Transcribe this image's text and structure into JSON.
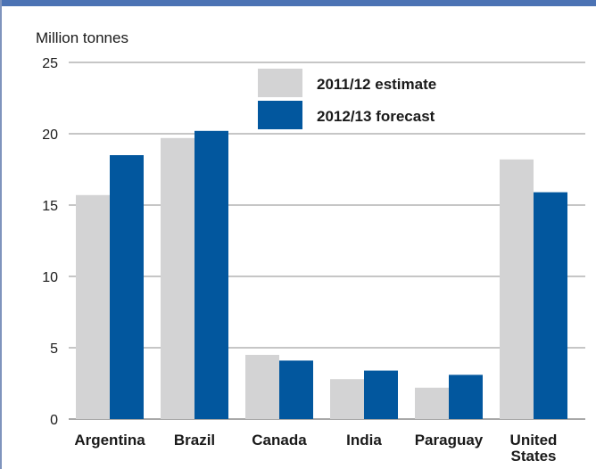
{
  "chart_data": {
    "type": "bar",
    "ylabel": "Million tonnes",
    "ylim": [
      0,
      25
    ],
    "yticks": [
      "0",
      "5",
      "10",
      "15",
      "20",
      "25"
    ],
    "categories": [
      "Argentina",
      "Brazil",
      "Canada",
      "India",
      "Paraguay",
      "United States"
    ],
    "category_lines": [
      [
        "Argentina"
      ],
      [
        "Brazil"
      ],
      [
        "Canada"
      ],
      [
        "India"
      ],
      [
        "Paraguay"
      ],
      [
        "United",
        "States"
      ]
    ],
    "series": [
      {
        "name": "2011/12 estimate",
        "color": "#d3d3d4",
        "values": [
          15.7,
          19.7,
          4.5,
          2.8,
          2.2,
          18.2
        ]
      },
      {
        "name": "2012/13 forecast",
        "color": "#02579e",
        "values": [
          18.5,
          20.2,
          4.1,
          3.4,
          3.1,
          15.9
        ]
      }
    ],
    "grid": true,
    "legend_position": "top-center"
  },
  "colors": {
    "frame": "#7f94bd",
    "top_bar": "#4c73b4",
    "grid": "#8c8c8c"
  }
}
